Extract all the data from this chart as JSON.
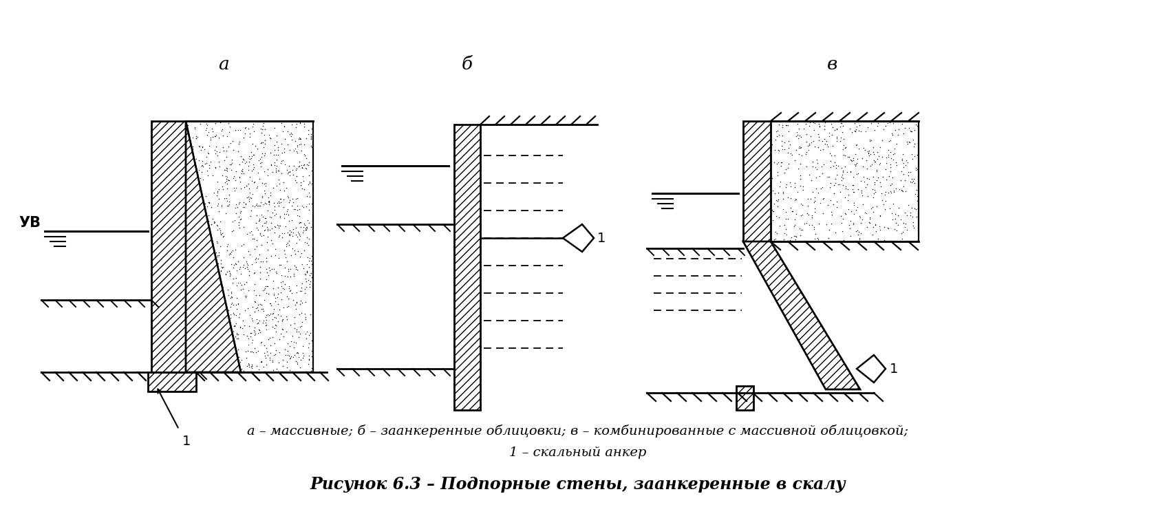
{
  "bg_color": "#ffffff",
  "title": "Рисунок 6.3 – Подпорные стены, заанкеренные в скалу",
  "caption": "а – массивные; б – заанкеренные облицовки; в – комбинированные с массивной облицовкой;",
  "caption2": "1 – скальный анкер",
  "label_a": "а",
  "label_b": "б",
  "label_v": "в",
  "label_uv": "УВ",
  "label_1": "1"
}
